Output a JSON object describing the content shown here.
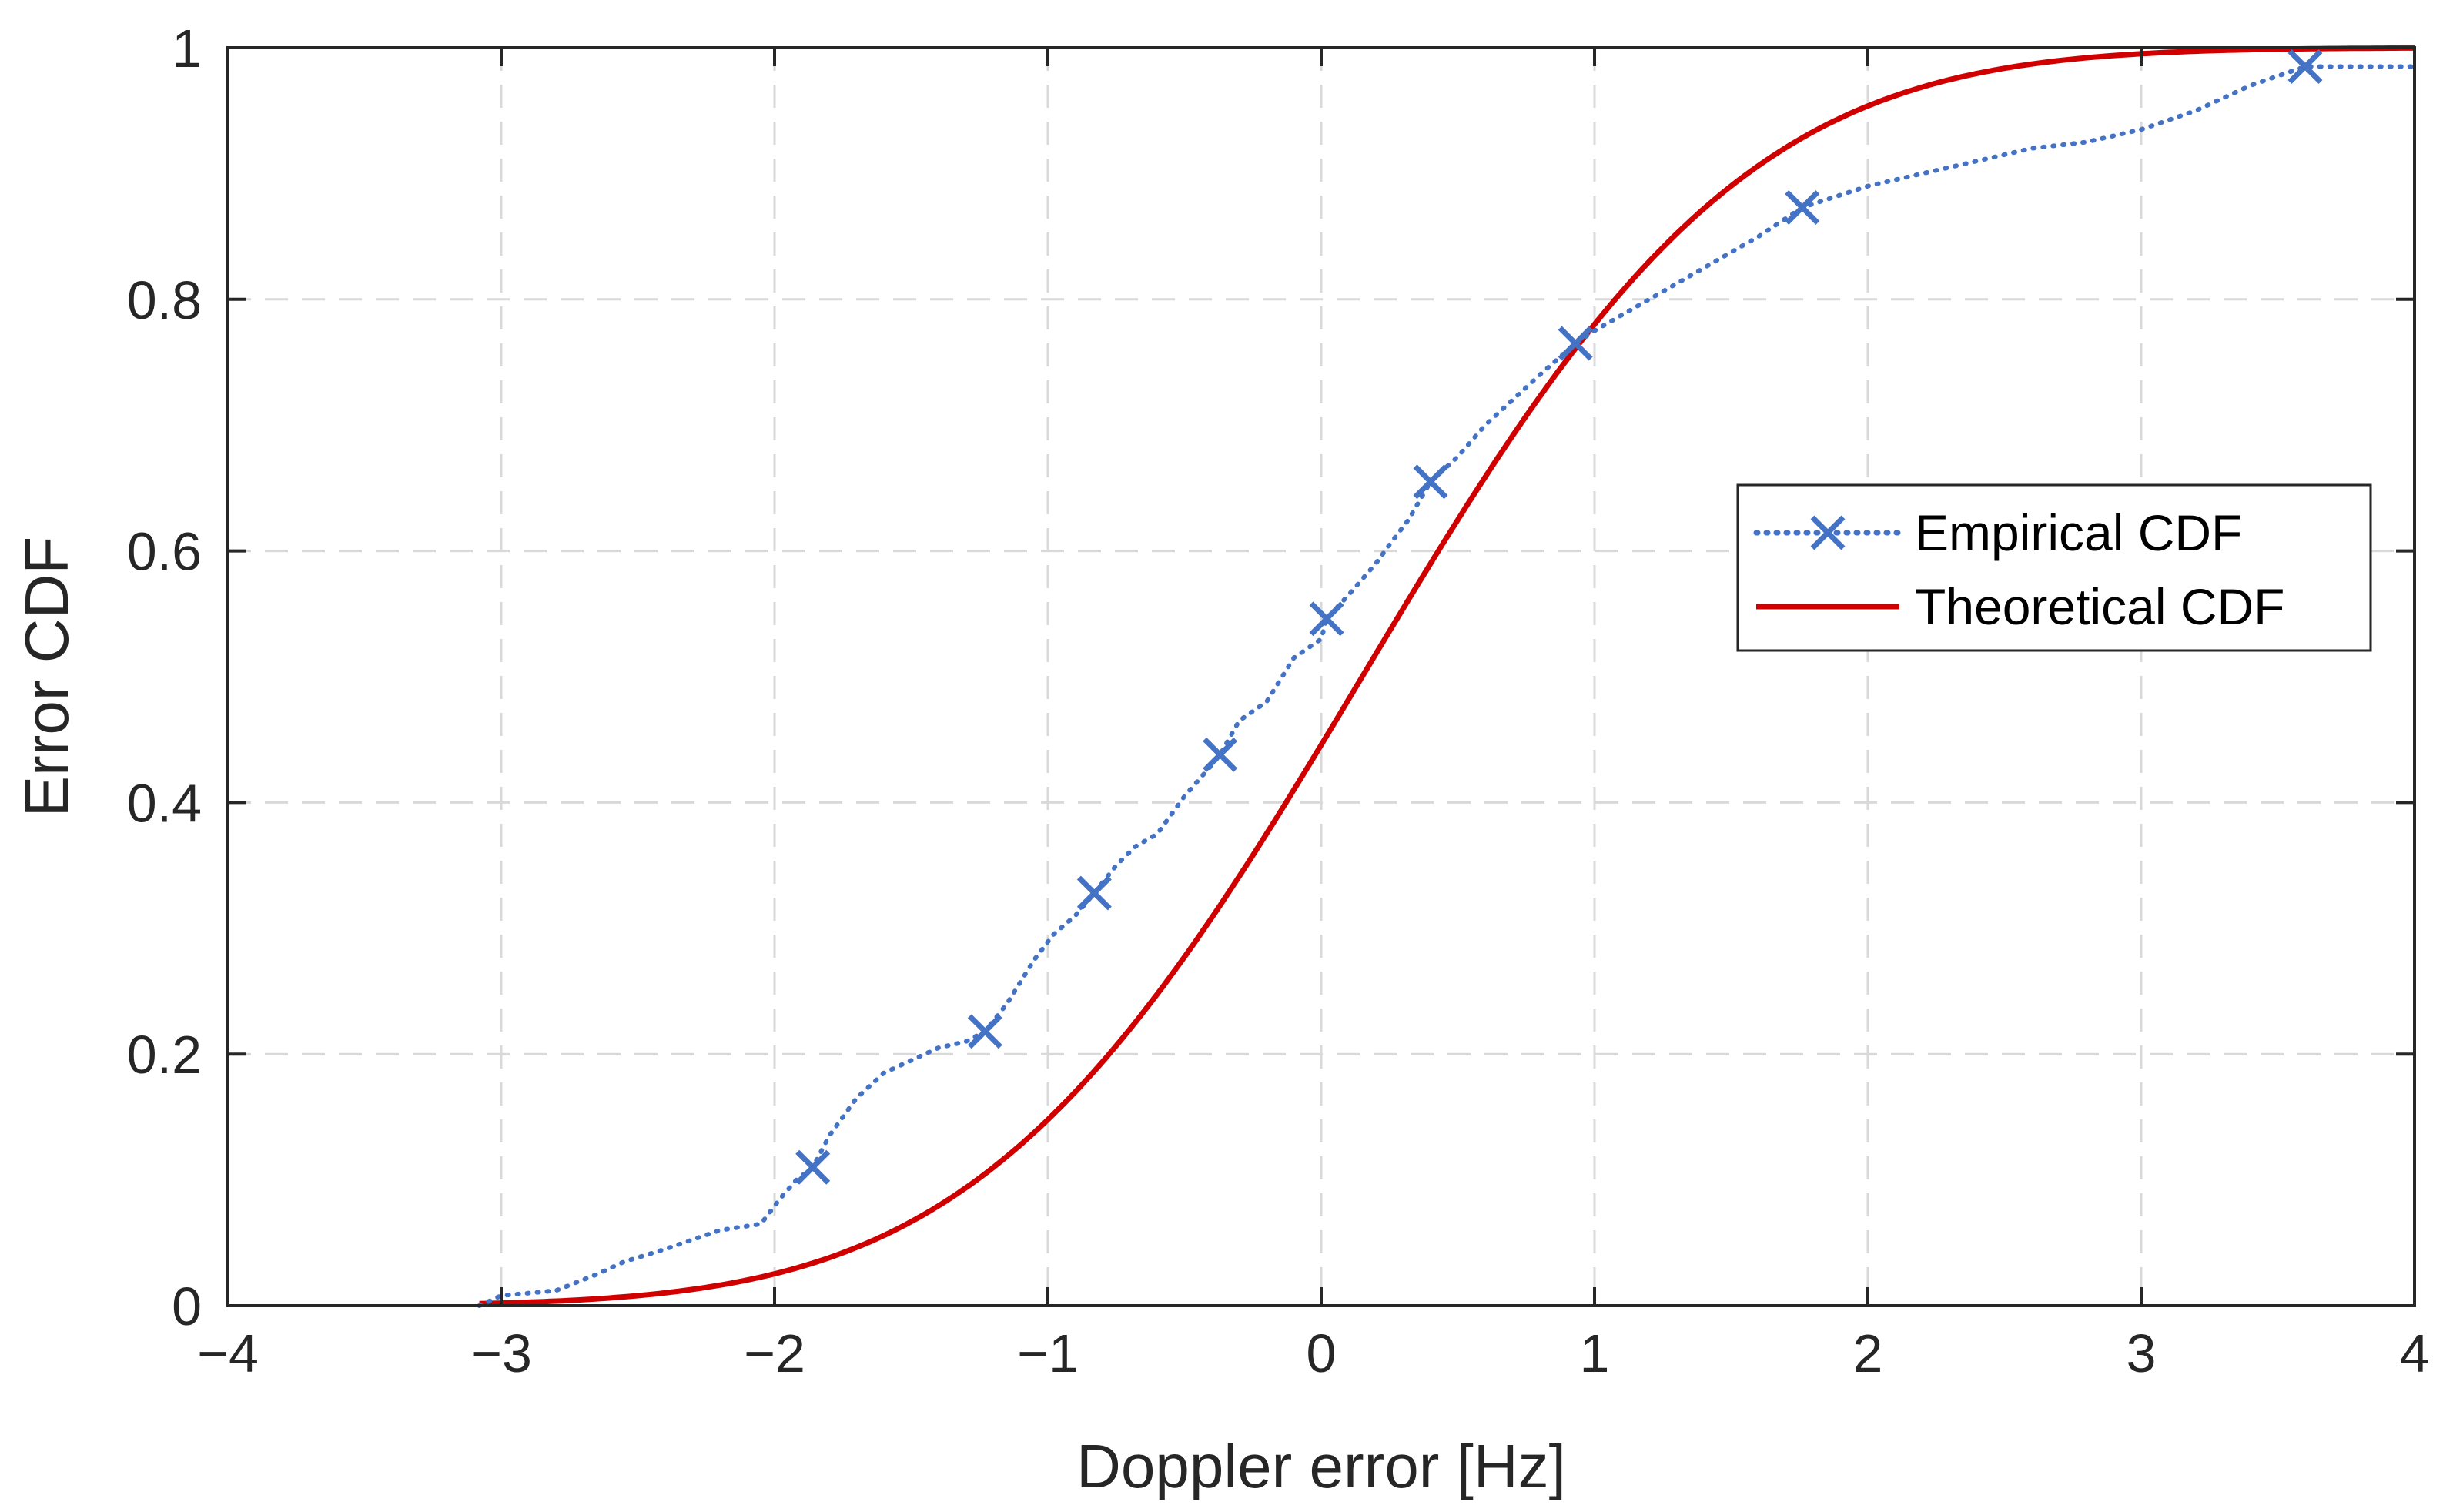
{
  "chart_data": {
    "type": "line",
    "title": "",
    "xlabel": "Doppler error [Hz]",
    "ylabel": "Error CDF",
    "xlim": [
      -4,
      4
    ],
    "ylim": [
      0,
      1
    ],
    "xticks": [
      -4,
      -3,
      -2,
      -1,
      0,
      1,
      2,
      3,
      4
    ],
    "xtick_labels": [
      "−4",
      "−3",
      "−2",
      "−1",
      "0",
      "1",
      "2",
      "3",
      "4"
    ],
    "yticks": [
      0,
      0.2,
      0.4,
      0.6,
      0.8,
      1
    ],
    "ytick_labels": [
      "0",
      "0.2",
      "0.4",
      "0.6",
      "0.8",
      "1"
    ],
    "grid": true,
    "legend_position": "right",
    "series": [
      {
        "name": "Empirical CDF",
        "style": "dotted",
        "marker": "x",
        "color": "#4472C4",
        "x": [
          -3.08,
          -3.0,
          -2.8,
          -2.65,
          -2.55,
          -2.4,
          -2.2,
          -2.05,
          -1.98,
          -1.92,
          -1.86,
          -1.8,
          -1.7,
          -1.6,
          -1.5,
          -1.4,
          -1.3,
          -1.23,
          -1.15,
          -1.05,
          -0.98,
          -0.9,
          -0.83,
          -0.75,
          -0.68,
          -0.6,
          -0.5,
          -0.4,
          -0.37,
          -0.3,
          -0.2,
          -0.1,
          0.0,
          0.02,
          0.1,
          0.2,
          0.25,
          0.32,
          0.4,
          0.5,
          0.6,
          0.7,
          0.8,
          0.93,
          1.0,
          1.2,
          1.4,
          1.6,
          1.76,
          2.0,
          2.2,
          2.4,
          2.6,
          2.8,
          3.0,
          3.2,
          3.4,
          3.6,
          3.8,
          4.0
        ],
        "y": [
          0.0,
          0.008,
          0.012,
          0.025,
          0.035,
          0.045,
          0.06,
          0.065,
          0.085,
          0.1,
          0.11,
          0.135,
          0.165,
          0.185,
          0.195,
          0.205,
          0.21,
          0.218,
          0.24,
          0.275,
          0.295,
          0.31,
          0.328,
          0.35,
          0.365,
          0.375,
          0.405,
          0.43,
          0.438,
          0.465,
          0.48,
          0.515,
          0.53,
          0.546,
          0.565,
          0.59,
          0.605,
          0.625,
          0.655,
          0.675,
          0.7,
          0.72,
          0.74,
          0.765,
          0.775,
          0.8,
          0.825,
          0.85,
          0.873,
          0.89,
          0.9,
          0.91,
          0.92,
          0.925,
          0.935,
          0.95,
          0.97,
          0.985,
          0.985,
          0.985
        ],
        "marker_points": [
          [
            -1.86,
            0.11
          ],
          [
            -1.23,
            0.218
          ],
          [
            -0.83,
            0.328
          ],
          [
            -0.37,
            0.438
          ],
          [
            0.02,
            0.546
          ],
          [
            0.4,
            0.655
          ],
          [
            0.93,
            0.765
          ],
          [
            1.76,
            0.873
          ],
          [
            3.6,
            0.985
          ]
        ]
      },
      {
        "name": "Theoretical CDF",
        "style": "solid",
        "color": "#D00000",
        "distribution": {
          "kind": "normal",
          "mean": 0.15,
          "sd": 1.1
        },
        "x_range": [
          -3.08,
          4.0
        ]
      }
    ]
  }
}
